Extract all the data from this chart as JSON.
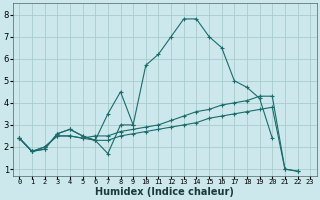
{
  "xlabel": "Humidex (Indice chaleur)",
  "ylabel": "",
  "bg_color": "#cce8ec",
  "grid_color": "#aacccc",
  "line_color": "#1a6b6b",
  "xlim": [
    -0.5,
    23.5
  ],
  "ylim": [
    0.7,
    8.5
  ],
  "xticks": [
    0,
    1,
    2,
    3,
    4,
    5,
    6,
    7,
    8,
    9,
    10,
    11,
    12,
    13,
    14,
    15,
    16,
    17,
    18,
    19,
    20,
    21,
    22,
    23
  ],
  "yticks": [
    1,
    2,
    3,
    4,
    5,
    6,
    7,
    8
  ],
  "series": [
    {
      "x": [
        0,
        1,
        2,
        3,
        4,
        5,
        6,
        7,
        8,
        9,
        10,
        11,
        12,
        13,
        14,
        15,
        16,
        17,
        18,
        19,
        20
      ],
      "y": [
        2.4,
        1.8,
        1.9,
        2.6,
        2.8,
        2.5,
        2.3,
        3.5,
        4.5,
        3.0,
        5.7,
        6.2,
        7.0,
        7.8,
        7.8,
        7.0,
        6.5,
        5.0,
        4.7,
        4.2,
        2.4
      ]
    },
    {
      "x": [
        0,
        1,
        2,
        3,
        4,
        5,
        6,
        7,
        8,
        9
      ],
      "y": [
        2.4,
        1.8,
        1.9,
        2.6,
        2.8,
        2.5,
        2.3,
        1.7,
        3.0,
        3.0
      ]
    },
    {
      "x": [
        0,
        1,
        2,
        3,
        4,
        5,
        6,
        7,
        8,
        9,
        10,
        11,
        12,
        13,
        14,
        15,
        16,
        17,
        18,
        19,
        20,
        21,
        22
      ],
      "y": [
        2.4,
        1.8,
        2.0,
        2.5,
        2.5,
        2.4,
        2.5,
        2.5,
        2.7,
        2.8,
        2.9,
        3.0,
        3.2,
        3.4,
        3.6,
        3.7,
        3.9,
        4.0,
        4.1,
        4.3,
        4.3,
        1.0,
        0.9
      ]
    },
    {
      "x": [
        0,
        1,
        2,
        3,
        4,
        5,
        6,
        7,
        8,
        9,
        10,
        11,
        12,
        13,
        14,
        15,
        16,
        17,
        18,
        19,
        20,
        21,
        22
      ],
      "y": [
        2.4,
        1.8,
        2.0,
        2.5,
        2.5,
        2.4,
        2.3,
        2.3,
        2.5,
        2.6,
        2.7,
        2.8,
        2.9,
        3.0,
        3.1,
        3.3,
        3.4,
        3.5,
        3.6,
        3.7,
        3.8,
        1.0,
        0.9
      ]
    }
  ]
}
